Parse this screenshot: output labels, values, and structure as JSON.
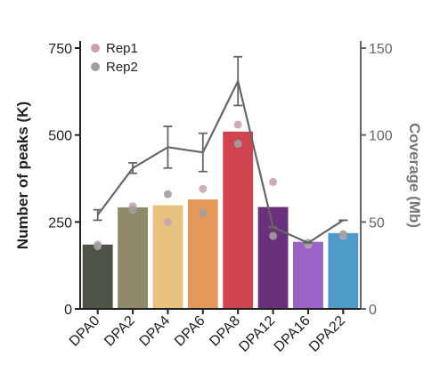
{
  "chart_data": {
    "type": "bar",
    "categories": [
      "DPA0",
      "DPA2",
      "DPA4",
      "DPA6",
      "DPA8",
      "DPA12",
      "DPA16",
      "DPA22"
    ],
    "bar_colors": [
      "#4d5347",
      "#8f8a67",
      "#e8c17e",
      "#e39959",
      "#d0444f",
      "#6b307c",
      "#9b63c4",
      "#4e9ac9"
    ],
    "series": [
      {
        "name": "Number of peaks",
        "axis": "left",
        "values": [
          185,
          292,
          298,
          315,
          510,
          293,
          193,
          218
        ]
      },
      {
        "name": "Coverage",
        "axis": "right",
        "type": "line",
        "color": "#666666",
        "values": [
          54,
          81,
          93,
          90,
          131,
          47,
          38,
          51
        ],
        "error": [
          3,
          3,
          12,
          11,
          14,
          0,
          0,
          0
        ]
      }
    ],
    "replicates": [
      {
        "name": "Rep1",
        "color": "#c9a3b5",
        "values": [
          37,
          59,
          50,
          69,
          106,
          73,
          37,
          42
        ]
      },
      {
        "name": "Rep2",
        "color": "#9e9e9e",
        "values": [
          36,
          57,
          66,
          55,
          95,
          42,
          38,
          43
        ]
      }
    ],
    "left_axis": {
      "label": "Number of peaks (K)",
      "ticks": [
        "0",
        "250",
        "500",
        "750"
      ],
      "tick_values": [
        0,
        250,
        500,
        750
      ],
      "ylim": [
        0,
        750
      ]
    },
    "right_axis": {
      "label": "Coverage (Mb)",
      "ticks": [
        "0",
        "50",
        "100",
        "150"
      ],
      "tick_values": [
        0,
        50,
        100,
        150
      ],
      "ylim": [
        0,
        150
      ]
    },
    "legend": {
      "placement": "top-left",
      "entries": [
        "Rep1",
        "Rep2"
      ]
    },
    "grid": false
  }
}
